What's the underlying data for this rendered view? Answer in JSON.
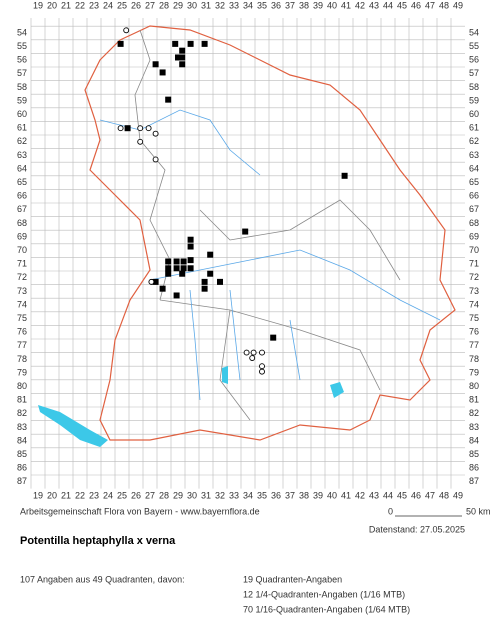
{
  "map": {
    "x_labels": [
      19,
      20,
      21,
      22,
      23,
      24,
      25,
      26,
      27,
      28,
      29,
      30,
      31,
      32,
      33,
      34,
      35,
      36,
      37,
      38,
      39,
      40,
      41,
      42,
      43,
      44,
      45,
      46,
      47,
      48,
      49
    ],
    "y_labels": [
      54,
      55,
      56,
      57,
      58,
      59,
      60,
      61,
      62,
      63,
      64,
      65,
      66,
      67,
      68,
      69,
      70,
      71,
      72,
      73,
      74,
      75,
      76,
      77,
      78,
      79,
      80,
      81,
      82,
      83,
      84,
      85,
      86,
      87
    ],
    "squares": [
      [
        24.9,
        54.8
      ],
      [
        28.8,
        54.8
      ],
      [
        29.9,
        54.8
      ],
      [
        30.9,
        54.8
      ],
      [
        29.3,
        55.3
      ],
      [
        29.0,
        55.8
      ],
      [
        29.3,
        55.8
      ],
      [
        29.3,
        56.3
      ],
      [
        27.4,
        56.3
      ],
      [
        27.9,
        56.9
      ],
      [
        28.3,
        58.9
      ],
      [
        25.4,
        61.0
      ],
      [
        40.9,
        64.5
      ],
      [
        33.8,
        68.6
      ],
      [
        29.9,
        69.2
      ],
      [
        29.9,
        69.7
      ],
      [
        31.3,
        70.3
      ],
      [
        29.9,
        70.7
      ],
      [
        28.3,
        70.8
      ],
      [
        28.9,
        70.8
      ],
      [
        29.4,
        70.8
      ],
      [
        28.3,
        71.3
      ],
      [
        28.9,
        71.3
      ],
      [
        29.4,
        71.3
      ],
      [
        29.9,
        71.3
      ],
      [
        28.3,
        71.7
      ],
      [
        29.3,
        71.7
      ],
      [
        31.3,
        71.7
      ],
      [
        27.4,
        72.3
      ],
      [
        30.9,
        72.3
      ],
      [
        32.0,
        72.3
      ],
      [
        27.9,
        72.8
      ],
      [
        30.9,
        72.8
      ],
      [
        28.9,
        73.3
      ],
      [
        35.8,
        76.4
      ]
    ],
    "circles": [
      [
        25.3,
        53.8
      ],
      [
        24.9,
        61.0
      ],
      [
        26.3,
        61.0
      ],
      [
        26.9,
        61.0
      ],
      [
        27.4,
        61.4
      ],
      [
        26.3,
        62.0
      ],
      [
        27.4,
        63.3
      ],
      [
        27.1,
        72.3
      ],
      [
        33.9,
        77.5
      ],
      [
        34.4,
        77.5
      ],
      [
        35.0,
        77.5
      ],
      [
        34.3,
        77.9
      ],
      [
        35.0,
        78.5
      ],
      [
        35.0,
        78.9
      ]
    ]
  },
  "footer": {
    "credit": "Arbeitsgemeinschaft Flora von Bayern - www.bayernflora.de",
    "scale_start": "0",
    "scale_end": "50 km",
    "date": "Datenstand: 27.05.2025"
  },
  "title": "Potentilla heptaphylla x verna",
  "summary": {
    "total": "107 Angaben aus 49 Quadranten, davon:",
    "lines": [
      "19 Quadranten-Angaben",
      "12 1/4-Quadranten-Angaben (1/16 MTB)",
      "70 1/16-Quadranten-Angaben (1/64 MTB)"
    ]
  }
}
